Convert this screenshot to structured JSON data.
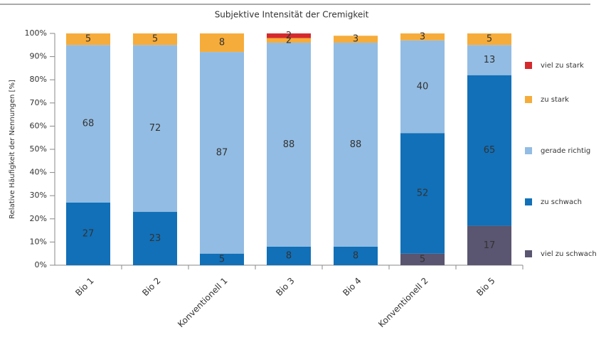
{
  "chart_data": {
    "type": "stacked_bar",
    "title": "Subjektive Intensität der Cremigkeit",
    "y_label": "Relative Häufigkeit der Nennungen [%]",
    "categories": [
      "Bio 1",
      "Bio 2",
      "Konventionell 1",
      "Bio 3",
      "Bio 4",
      "Konventionell 2",
      "Bio 5"
    ],
    "series": [
      {
        "name": "viel zu schwach",
        "color": "#5a5570",
        "values": [
          null,
          null,
          null,
          null,
          null,
          5,
          17
        ]
      },
      {
        "name": "zu schwach",
        "color": "#1170b8",
        "values": [
          27,
          23,
          5,
          8,
          8,
          52,
          65
        ]
      },
      {
        "name": "gerade richtig",
        "color": "#92bce3",
        "values": [
          68,
          72,
          87,
          88,
          88,
          40,
          13
        ]
      },
      {
        "name": "zu stark",
        "color": "#f6ac3a",
        "values": [
          5,
          5,
          8,
          2,
          3,
          3,
          5
        ]
      },
      {
        "name": "viel zu stark",
        "color": "#d42a2e",
        "values": [
          null,
          null,
          null,
          2,
          null,
          null,
          null
        ]
      }
    ],
    "ylim": [
      0,
      100
    ],
    "yticks": [
      {
        "value": 0,
        "label": "0%"
      },
      {
        "value": 10,
        "label": "10%"
      },
      {
        "value": 20,
        "label": "20%"
      },
      {
        "value": 30,
        "label": "30%"
      },
      {
        "value": 40,
        "label": "40%"
      },
      {
        "value": 50,
        "label": "50%"
      },
      {
        "value": 60,
        "label": "60%"
      },
      {
        "value": 70,
        "label": "70%"
      },
      {
        "value": 80,
        "label": "80%"
      },
      {
        "value": 90,
        "label": "90%"
      },
      {
        "value": 100,
        "label": "100%"
      }
    ],
    "legend": "right"
  }
}
